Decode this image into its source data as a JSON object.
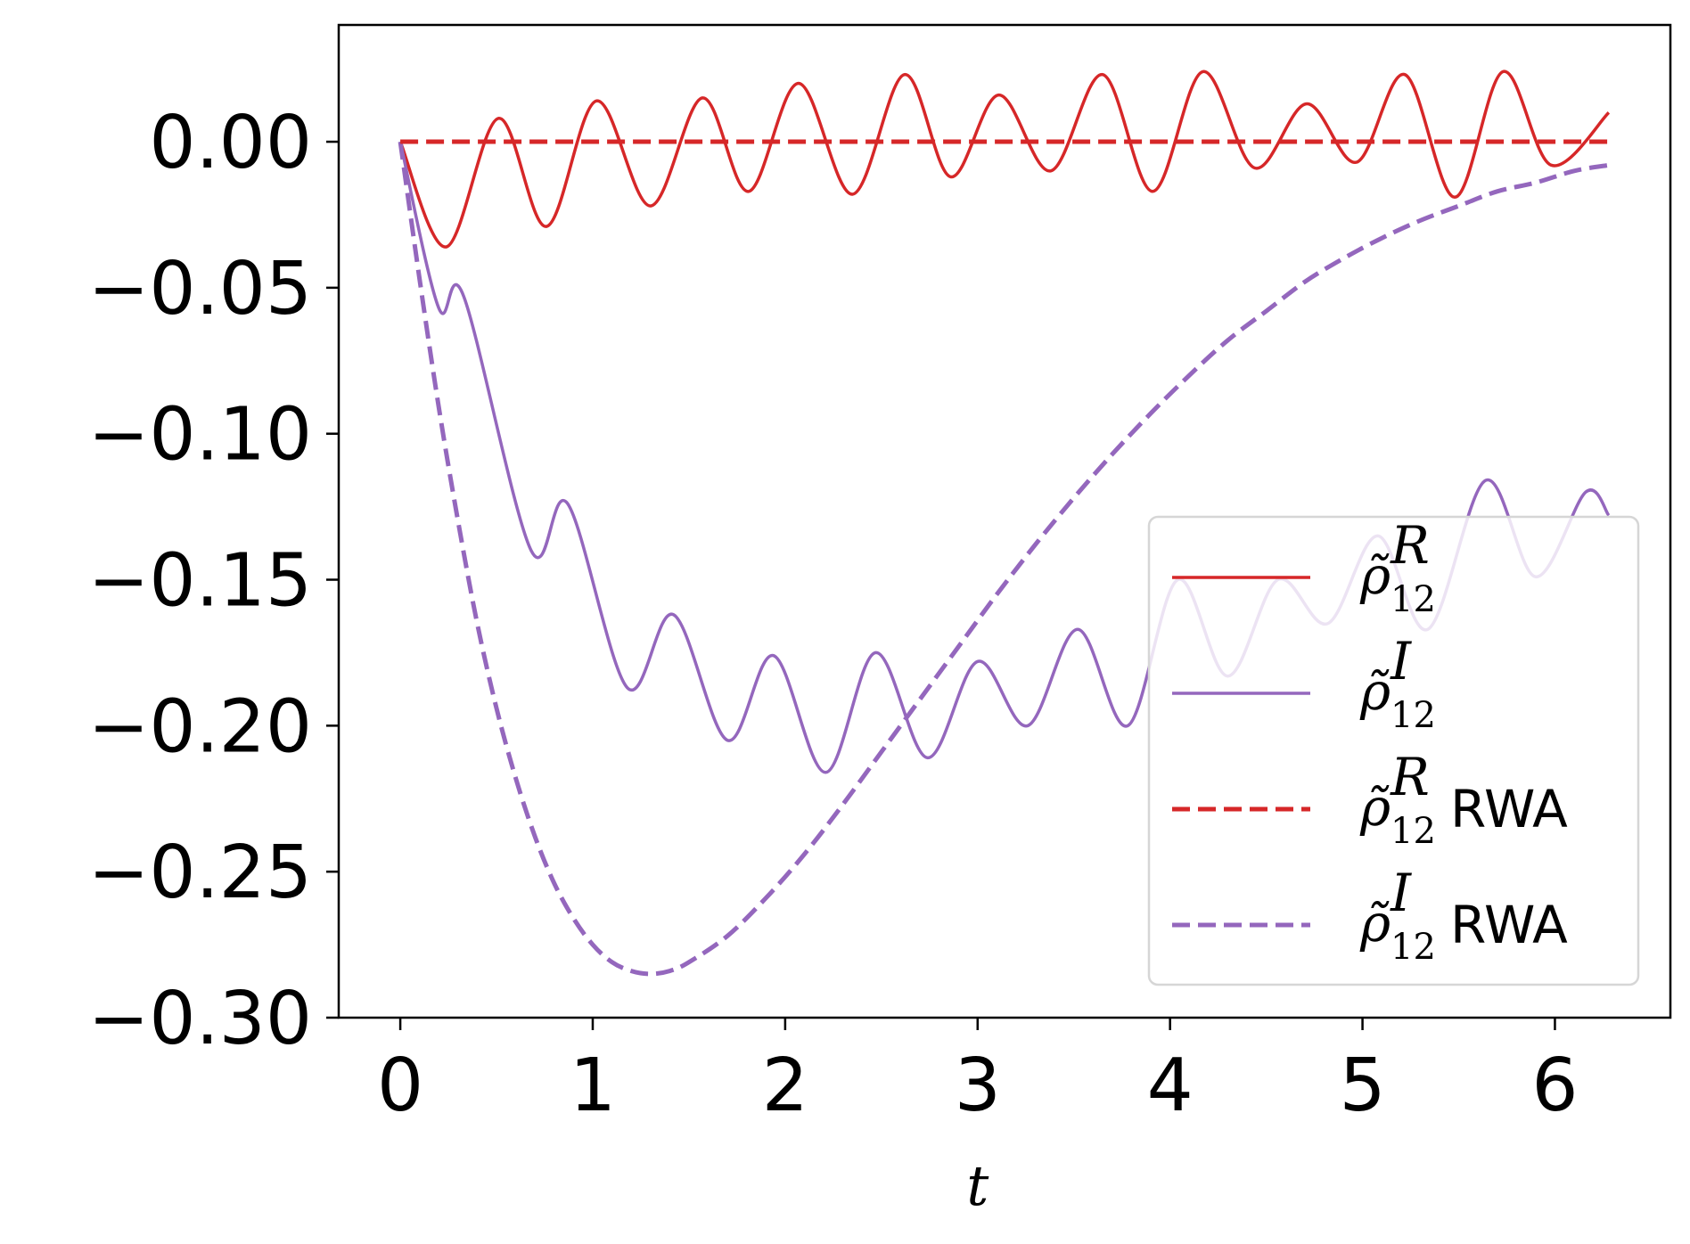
{
  "chart_data": {
    "type": "line",
    "title": "",
    "xlabel": "t",
    "ylabel": "",
    "xlim": [
      -0.32,
      6.6
    ],
    "ylim": [
      -0.3,
      0.04
    ],
    "xticks": [
      0,
      1,
      2,
      3,
      4,
      5,
      6
    ],
    "xtick_labels": [
      "0",
      "1",
      "2",
      "3",
      "4",
      "5",
      "6"
    ],
    "yticks": [
      0.0,
      -0.05,
      -0.1,
      -0.15,
      -0.2,
      -0.25,
      -0.3
    ],
    "ytick_labels": [
      "0.00",
      "−0.05",
      "−0.10",
      "−0.15",
      "−0.20",
      "−0.25",
      "−0.30"
    ],
    "grid": false,
    "legend_position": "lower-right",
    "series": [
      {
        "name": "rho12 R",
        "legend": {
          "base": "ρ̃",
          "sup": "R",
          "sub": "12",
          "suffix": ""
        },
        "color": "#d62728",
        "style": "solid",
        "x": [
          0.0,
          0.24,
          0.51,
          0.76,
          1.02,
          1.3,
          1.57,
          1.81,
          2.07,
          2.35,
          2.62,
          2.86,
          3.11,
          3.38,
          3.65,
          3.91,
          4.17,
          4.44,
          4.71,
          4.97,
          5.22,
          5.48,
          5.73,
          5.98,
          6.28
        ],
        "y": [
          0.0,
          -0.036,
          0.008,
          -0.029,
          0.014,
          -0.022,
          0.015,
          -0.017,
          0.02,
          -0.018,
          0.023,
          -0.012,
          0.016,
          -0.01,
          0.023,
          -0.017,
          0.024,
          -0.009,
          0.013,
          -0.007,
          0.023,
          -0.019,
          0.024,
          -0.008,
          0.01
        ]
      },
      {
        "name": "rho12 I",
        "legend": {
          "base": "ρ̃",
          "sup": "I",
          "sub": "12",
          "suffix": ""
        },
        "color": "#9467bd",
        "style": "solid",
        "x": [
          0.0,
          0.2,
          0.33,
          0.68,
          0.87,
          1.18,
          1.42,
          1.7,
          1.94,
          2.21,
          2.47,
          2.74,
          3.0,
          3.26,
          3.52,
          3.78,
          4.04,
          4.3,
          4.56,
          4.82,
          5.08,
          5.34,
          5.64,
          5.9,
          6.16,
          6.28
        ],
        "y": [
          0.0,
          -0.057,
          -0.053,
          -0.14,
          -0.124,
          -0.187,
          -0.162,
          -0.205,
          -0.176,
          -0.216,
          -0.175,
          -0.211,
          -0.178,
          -0.2,
          -0.167,
          -0.2,
          -0.15,
          -0.183,
          -0.15,
          -0.165,
          -0.135,
          -0.167,
          -0.116,
          -0.149,
          -0.12,
          -0.128
        ]
      },
      {
        "name": "rho12 R RWA",
        "legend": {
          "base": "ρ̃",
          "sup": "R",
          "sub": "12",
          "suffix": "RWA"
        },
        "color": "#d62728",
        "style": "dashed",
        "x": [
          0.0,
          6.28
        ],
        "y": [
          0.0,
          0.0
        ]
      },
      {
        "name": "rho12 I RWA",
        "legend": {
          "base": "ρ̃",
          "sup": "I",
          "sub": "12",
          "suffix": "RWA"
        },
        "color": "#9467bd",
        "style": "dashed",
        "x": [
          0.0,
          0.1,
          0.2,
          0.3,
          0.4,
          0.5,
          0.6,
          0.7,
          0.8,
          0.9,
          1.0,
          1.1,
          1.2,
          1.3,
          1.4,
          1.5,
          1.7,
          1.9,
          2.1,
          2.3,
          2.5,
          2.7,
          2.9,
          3.1,
          3.3,
          3.5,
          3.7,
          3.9,
          4.1,
          4.3,
          4.5,
          4.7,
          4.9,
          5.1,
          5.3,
          5.5,
          5.7,
          5.9,
          6.1,
          6.28
        ],
        "y": [
          0.0,
          -0.047,
          -0.091,
          -0.13,
          -0.165,
          -0.194,
          -0.218,
          -0.238,
          -0.254,
          -0.266,
          -0.275,
          -0.281,
          -0.284,
          -0.285,
          -0.284,
          -0.281,
          -0.272,
          -0.259,
          -0.244,
          -0.227,
          -0.209,
          -0.191,
          -0.173,
          -0.155,
          -0.138,
          -0.122,
          -0.107,
          -0.093,
          -0.08,
          -0.068,
          -0.058,
          -0.048,
          -0.04,
          -0.033,
          -0.027,
          -0.022,
          -0.017,
          -0.014,
          -0.01,
          -0.008
        ]
      }
    ]
  }
}
